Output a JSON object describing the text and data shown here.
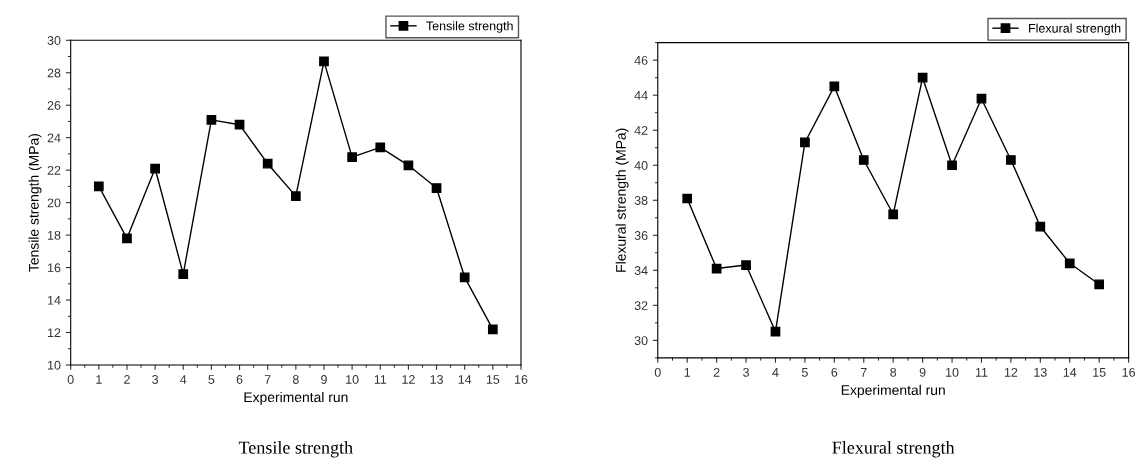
{
  "chart_data": [
    {
      "type": "line",
      "xlabel": "Experimental run",
      "ylabel": "Tensile strength (MPa)",
      "x": [
        1,
        2,
        3,
        4,
        5,
        6,
        7,
        8,
        9,
        10,
        11,
        12,
        13,
        14,
        15
      ],
      "series": [
        {
          "name": "Tensile strength",
          "color": "#000000",
          "values": [
            21.0,
            17.8,
            22.1,
            15.6,
            25.1,
            24.8,
            22.4,
            20.4,
            28.7,
            22.8,
            23.4,
            22.3,
            20.9,
            15.4,
            12.2
          ]
        }
      ],
      "xlim": [
        0,
        16
      ],
      "xticks": [
        0,
        1,
        2,
        3,
        4,
        5,
        6,
        7,
        8,
        9,
        10,
        11,
        12,
        13,
        14,
        15,
        16
      ],
      "ylim": [
        10,
        30
      ],
      "yticks": [
        10,
        12,
        14,
        16,
        18,
        20,
        22,
        24,
        26,
        28,
        30
      ],
      "marker": "square",
      "line_style": "solid",
      "legend": "top right",
      "grid": false,
      "annotations": [
        "Tensile strength"
      ]
    },
    {
      "type": "line",
      "xlabel": "Experimental run",
      "ylabel": "Flexural strength (MPa)",
      "x": [
        1,
        2,
        3,
        4,
        5,
        6,
        7,
        8,
        9,
        10,
        11,
        12,
        13,
        14,
        15
      ],
      "series": [
        {
          "name": "Flexural strength",
          "color": "#000000",
          "values": [
            38.1,
            34.1,
            34.3,
            30.5,
            41.3,
            44.5,
            40.3,
            37.2,
            45.0,
            40.0,
            43.8,
            40.3,
            36.5,
            34.4,
            33.2
          ]
        }
      ],
      "xlim": [
        0,
        16
      ],
      "xticks": [
        0,
        1,
        2,
        3,
        4,
        5,
        6,
        7,
        8,
        9,
        10,
        11,
        12,
        13,
        14,
        15,
        16
      ],
      "ylim": [
        29,
        47
      ],
      "yticks": [
        30,
        32,
        34,
        36,
        38,
        40,
        42,
        44,
        46
      ],
      "marker": "square",
      "line_style": "solid",
      "legend": "top right",
      "grid": false,
      "annotations": [
        "Flexural strength"
      ]
    }
  ]
}
